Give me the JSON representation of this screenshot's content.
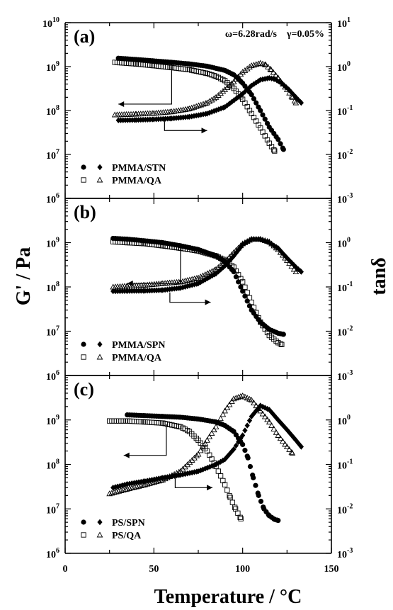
{
  "chart_data": {
    "type": "scatter",
    "xlabel": "Temperature / °C",
    "ylabel_left": "G' / Pa",
    "ylabel_right": "tanδ",
    "xlim": [
      0,
      150
    ],
    "x_ticks": [
      "0",
      "50",
      "100",
      "150"
    ],
    "left_scale": "log",
    "right_scale": "log",
    "panels": [
      {
        "label": "(a)",
        "conditions": "ω=6.28rad/s    γ=0.05%",
        "left_ticks": [
          {
            "value": 10000000000.0,
            "base": "10",
            "exp": "10"
          },
          {
            "value": 1000000000.0,
            "base": "10",
            "exp": "9"
          },
          {
            "value": 100000000.0,
            "base": "10",
            "exp": "8"
          },
          {
            "value": 10000000.0,
            "base": "10",
            "exp": "7"
          },
          {
            "value": 1000000.0,
            "base": "10",
            "exp": "6"
          }
        ],
        "right_ticks": [
          {
            "value": 10,
            "base": "10",
            "exp": "1"
          },
          {
            "value": 1,
            "base": "10",
            "exp": "0"
          },
          {
            "value": 0.1,
            "base": "10",
            "exp": "-1"
          },
          {
            "value": 0.01,
            "base": "10",
            "exp": "-2"
          },
          {
            "value": 0.001,
            "base": "10",
            "exp": "-3"
          }
        ],
        "ylim_left": [
          1000000.0,
          10000000000.0
        ],
        "ylim_right": [
          0.001,
          10
        ],
        "legend": [
          "PMMA/STN",
          "PMMA/QA"
        ],
        "series": [
          {
            "name": "PMMA/STN",
            "quantity": "G'",
            "axis": "left",
            "marker": "filled-circle",
            "x": [
              30,
              40,
              50,
              60,
              70,
              80,
              90,
              95,
              100,
              105,
              110,
              115,
              120,
              123
            ],
            "y": [
              1550000000.0,
              1450000000.0,
              1350000000.0,
              1250000000.0,
              1150000000.0,
              1020000000.0,
              820000000.0,
              650000000.0,
              420000000.0,
              230000000.0,
              100000000.0,
              42000000.0,
              22000000.0,
              13000000.0
            ]
          },
          {
            "name": "PMMA/STN",
            "quantity": "tanδ",
            "axis": "right",
            "marker": "filled-diamond",
            "x": [
              30,
              40,
              50,
              60,
              70,
              80,
              90,
              100,
              105,
              110,
              115,
              118,
              122,
              126,
              130,
              133
            ],
            "y": [
              0.06,
              0.061,
              0.063,
              0.066,
              0.072,
              0.085,
              0.12,
              0.24,
              0.37,
              0.5,
              0.55,
              0.52,
              0.42,
              0.3,
              0.2,
              0.15
            ]
          },
          {
            "name": "PMMA/QA",
            "quantity": "G'",
            "axis": "left",
            "marker": "open-square",
            "x": [
              28,
              40,
              50,
              60,
              70,
              80,
              85,
              90,
              95,
              100,
              105,
              110,
              115,
              118
            ],
            "y": [
              1250000000.0,
              1150000000.0,
              1050000000.0,
              950000000.0,
              850000000.0,
              700000000.0,
              600000000.0,
              480000000.0,
              320000000.0,
              180000000.0,
              85000000.0,
              40000000.0,
              18000000.0,
              12000000.0
            ]
          },
          {
            "name": "PMMA/QA",
            "quantity": "tanδ",
            "axis": "right",
            "marker": "open-triangle",
            "x": [
              28,
              40,
              50,
              60,
              70,
              80,
              85,
              90,
              95,
              100,
              105,
              110,
              113,
              116,
              120,
              125,
              128,
              130
            ],
            "y": [
              0.08,
              0.083,
              0.087,
              0.094,
              0.11,
              0.15,
              0.2,
              0.3,
              0.45,
              0.75,
              1.05,
              1.2,
              1.1,
              0.85,
              0.55,
              0.3,
              0.2,
              0.15
            ]
          }
        ]
      },
      {
        "label": "(b)",
        "conditions": "",
        "left_ticks": [
          {
            "value": 1000000000.0,
            "base": "10",
            "exp": "9"
          },
          {
            "value": 100000000.0,
            "base": "10",
            "exp": "8"
          },
          {
            "value": 10000000.0,
            "base": "10",
            "exp": "7"
          },
          {
            "value": 1000000.0,
            "base": "10",
            "exp": "6"
          }
        ],
        "right_ticks": [
          {
            "value": 1,
            "base": "10",
            "exp": "0"
          },
          {
            "value": 0.1,
            "base": "10",
            "exp": "-1"
          },
          {
            "value": 0.01,
            "base": "10",
            "exp": "-2"
          },
          {
            "value": 0.001,
            "base": "10",
            "exp": "-3"
          }
        ],
        "ylim_left": [
          1000000.0,
          10000000000.0
        ],
        "ylim_right": [
          0.001,
          10
        ],
        "legend": [
          "PMMA/SPN",
          "PMMA/QA"
        ],
        "series": [
          {
            "name": "PMMA/SPN",
            "quantity": "G'",
            "axis": "left",
            "marker": "filled-circle",
            "x": [
              27,
              35,
              45,
              55,
              65,
              75,
              85,
              90,
              95,
              100,
              105,
              110,
              115,
              120,
              123
            ],
            "y": [
              1250000000.0,
              1200000000.0,
              1100000000.0,
              1000000000.0,
              850000000.0,
              700000000.0,
              500000000.0,
              370000000.0,
              220000000.0,
              80000000.0,
              30000000.0,
              16000000.0,
              11000000.0,
              9000000.0,
              8500000.0
            ]
          },
          {
            "name": "PMMA/SPN",
            "quantity": "tanδ",
            "axis": "right",
            "marker": "filled-diamond",
            "x": [
              27,
              35,
              45,
              55,
              65,
              75,
              85,
              90,
              95,
              100,
              105,
              110,
              115,
              120,
              125,
              130,
              133
            ],
            "y": [
              0.08,
              0.081,
              0.082,
              0.085,
              0.095,
              0.12,
              0.2,
              0.3,
              0.5,
              0.9,
              1.2,
              1.2,
              1.0,
              0.75,
              0.45,
              0.28,
              0.22
            ]
          },
          {
            "name": "PMMA/QA",
            "quantity": "G'",
            "axis": "left",
            "marker": "open-square",
            "x": [
              27,
              35,
              45,
              55,
              65,
              75,
              85,
              90,
              95,
              100,
              105,
              110,
              115,
              120,
              122
            ],
            "y": [
              1050000000.0,
              1000000000.0,
              950000000.0,
              850000000.0,
              750000000.0,
              650000000.0,
              500000000.0,
              400000000.0,
              280000000.0,
              130000000.0,
              45000000.0,
              16000000.0,
              8000000.0,
              5500000.0,
              5000000.0
            ]
          },
          {
            "name": "PMMA/QA",
            "quantity": "tanδ",
            "axis": "right",
            "marker": "open-triangle",
            "x": [
              27,
              35,
              45,
              55,
              65,
              75,
              85,
              90,
              95,
              100,
              105,
              110,
              115,
              120,
              125,
              130
            ],
            "y": [
              0.1,
              0.105,
              0.11,
              0.12,
              0.13,
              0.16,
              0.25,
              0.37,
              0.6,
              0.95,
              1.2,
              1.2,
              1.05,
              0.7,
              0.4,
              0.22
            ]
          }
        ]
      },
      {
        "label": "(c)",
        "conditions": "",
        "left_ticks": [
          {
            "value": 1000000000.0,
            "base": "10",
            "exp": "9"
          },
          {
            "value": 100000000.0,
            "base": "10",
            "exp": "8"
          },
          {
            "value": 10000000.0,
            "base": "10",
            "exp": "7"
          },
          {
            "value": 1000000.0,
            "base": "10",
            "exp": "6"
          }
        ],
        "right_ticks": [
          {
            "value": 1,
            "base": "10",
            "exp": "0"
          },
          {
            "value": 0.1,
            "base": "10",
            "exp": "-1"
          },
          {
            "value": 0.01,
            "base": "10",
            "exp": "-2"
          },
          {
            "value": 0.001,
            "base": "10",
            "exp": "-3"
          }
        ],
        "ylim_left": [
          1000000.0,
          10000000000.0
        ],
        "ylim_right": [
          0.001,
          10
        ],
        "legend": [
          "PS/SPN",
          "PS/QA"
        ],
        "series": [
          {
            "name": "PS/SPN",
            "quantity": "G'",
            "axis": "left",
            "marker": "filled-circle",
            "x": [
              35,
              45,
              55,
              65,
              75,
              85,
              90,
              95,
              100,
              103,
              106,
              109,
              112,
              115,
              118,
              120
            ],
            "y": [
              1300000000.0,
              1250000000.0,
              1200000000.0,
              1150000000.0,
              1050000000.0,
              900000000.0,
              750000000.0,
              550000000.0,
              280000000.0,
              140000000.0,
              50000000.0,
              20000000.0,
              10000000.0,
              7000000.0,
              5800000.0,
              5500000.0
            ]
          },
          {
            "name": "PS/SPN",
            "quantity": "tanδ",
            "axis": "right",
            "marker": "filled-diamond",
            "x": [
              27,
              35,
              45,
              55,
              65,
              75,
              85,
              90,
              95,
              100,
              105,
              110,
              115,
              120,
              125,
              130,
              133
            ],
            "y": [
              0.03,
              0.036,
              0.042,
              0.05,
              0.058,
              0.07,
              0.1,
              0.13,
              0.22,
              0.45,
              1.2,
              2.1,
              1.7,
              1.0,
              0.6,
              0.35,
              0.25
            ]
          },
          {
            "name": "PS/QA",
            "quantity": "G'",
            "axis": "left",
            "marker": "open-square",
            "x": [
              25,
              35,
              45,
              55,
              65,
              70,
              75,
              80,
              85,
              90,
              93,
              96,
              99
            ],
            "y": [
              950000000.0,
              950000000.0,
              900000000.0,
              850000000.0,
              700000000.0,
              550000000.0,
              350000000.0,
              200000000.0,
              90000000.0,
              35000000.0,
              18000000.0,
              10000000.0,
              6000000.0
            ]
          },
          {
            "name": "PS/QA",
            "quantity": "tanδ",
            "axis": "right",
            "marker": "open-triangle",
            "x": [
              25,
              35,
              45,
              55,
              65,
              75,
              80,
              85,
              90,
              95,
              100,
              105,
              110,
              115,
              120,
              125,
              128
            ],
            "y": [
              0.022,
              0.028,
              0.035,
              0.045,
              0.07,
              0.17,
              0.35,
              0.7,
              1.6,
              3.0,
              3.5,
              2.8,
              1.6,
              0.9,
              0.45,
              0.25,
              0.18
            ]
          }
        ]
      }
    ],
    "arrows": [
      {
        "panel": 0,
        "dir": "left",
        "x0": 60,
        "y0": 1000000000.0,
        "y1": 140000000.0,
        "x1": 30
      },
      {
        "panel": 0,
        "dir": "right",
        "x0": 56,
        "y0": 0.06,
        "y1": 0.035,
        "x1": 80
      },
      {
        "panel": 1,
        "dir": "left",
        "x0": 65,
        "y0": 800000000.0,
        "y1": 120000000.0,
        "x1": 35
      },
      {
        "panel": 1,
        "dir": "right",
        "x0": 59,
        "y0": 0.075,
        "y1": 0.045,
        "x1": 82
      },
      {
        "panel": 2,
        "dir": "left",
        "x0": 57,
        "y0": 800000000.0,
        "y1": 160000000.0,
        "x1": 33
      },
      {
        "panel": 2,
        "dir": "right",
        "x0": 62,
        "y0": 0.06,
        "y1": 0.03,
        "x1": 83
      }
    ]
  }
}
